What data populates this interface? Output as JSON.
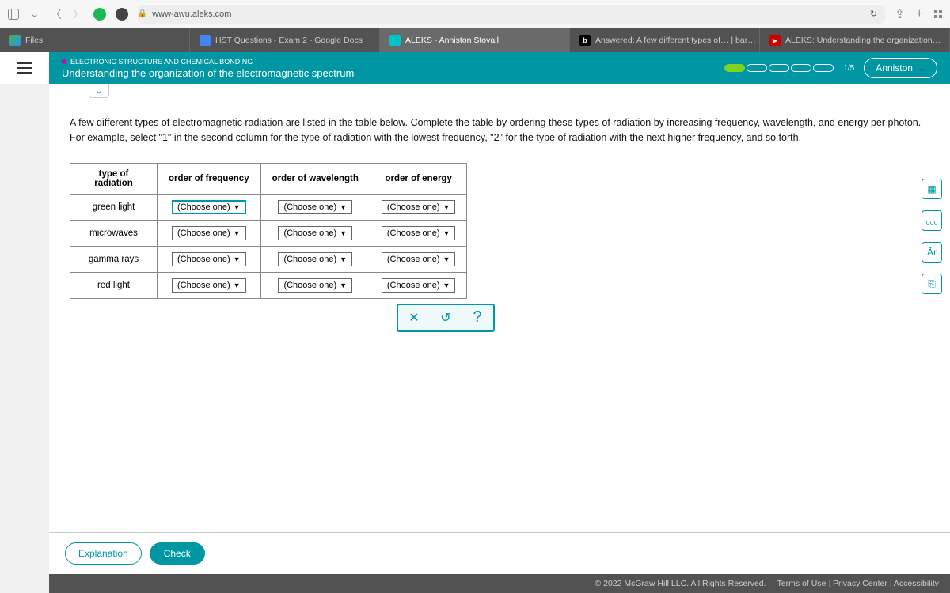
{
  "browser": {
    "url": "www-awu.aleks.com",
    "tabs": [
      {
        "label": "Files",
        "favicon": "fi-files"
      },
      {
        "label": "HST Questions - Exam 2 - Google Docs",
        "favicon": "fi-docs"
      },
      {
        "label": "ALEKS - Anniston Stovall",
        "favicon": "fi-aleks",
        "active": true
      },
      {
        "label": "Answered: A few different types of… | bar…",
        "favicon": "fi-b",
        "glyph": "b"
      },
      {
        "label": "ALEKS: Understanding the organization…",
        "favicon": "fi-yt",
        "glyph": "▶"
      }
    ]
  },
  "header": {
    "breadcrumb": "ELECTRONIC STRUCTURE AND CHEMICAL BONDING",
    "title": "Understanding the organization of the electromagnetic spectrum",
    "progress_label": "1/5",
    "progress_total": 5,
    "progress_filled": 1,
    "user_name": "Anniston"
  },
  "question": {
    "instructions": "A few different types of electromagnetic radiation are listed in the table below. Complete the table by ordering these types of radiation by increasing frequency, wavelength, and energy per photon. For example, select \"1\" in the second column for the type of radiation with the lowest frequency, \"2\" for the type of radiation with the next higher frequency, and so forth.",
    "columns": [
      "type of radiation",
      "order of frequency",
      "order of wavelength",
      "order of energy"
    ],
    "rows": [
      "green light",
      "microwaves",
      "gamma rays",
      "red light"
    ],
    "dropdown_placeholder": "(Choose one)"
  },
  "buttons": {
    "explanation": "Explanation",
    "check": "Check"
  },
  "footer": {
    "copyright": "© 2022 McGraw Hill LLC. All Rights Reserved.",
    "links": [
      "Terms of Use",
      "Privacy Center",
      "Accessibility"
    ]
  },
  "tool_glyphs": [
    "▦",
    "₀₀₀",
    "Ār",
    "⎘"
  ]
}
